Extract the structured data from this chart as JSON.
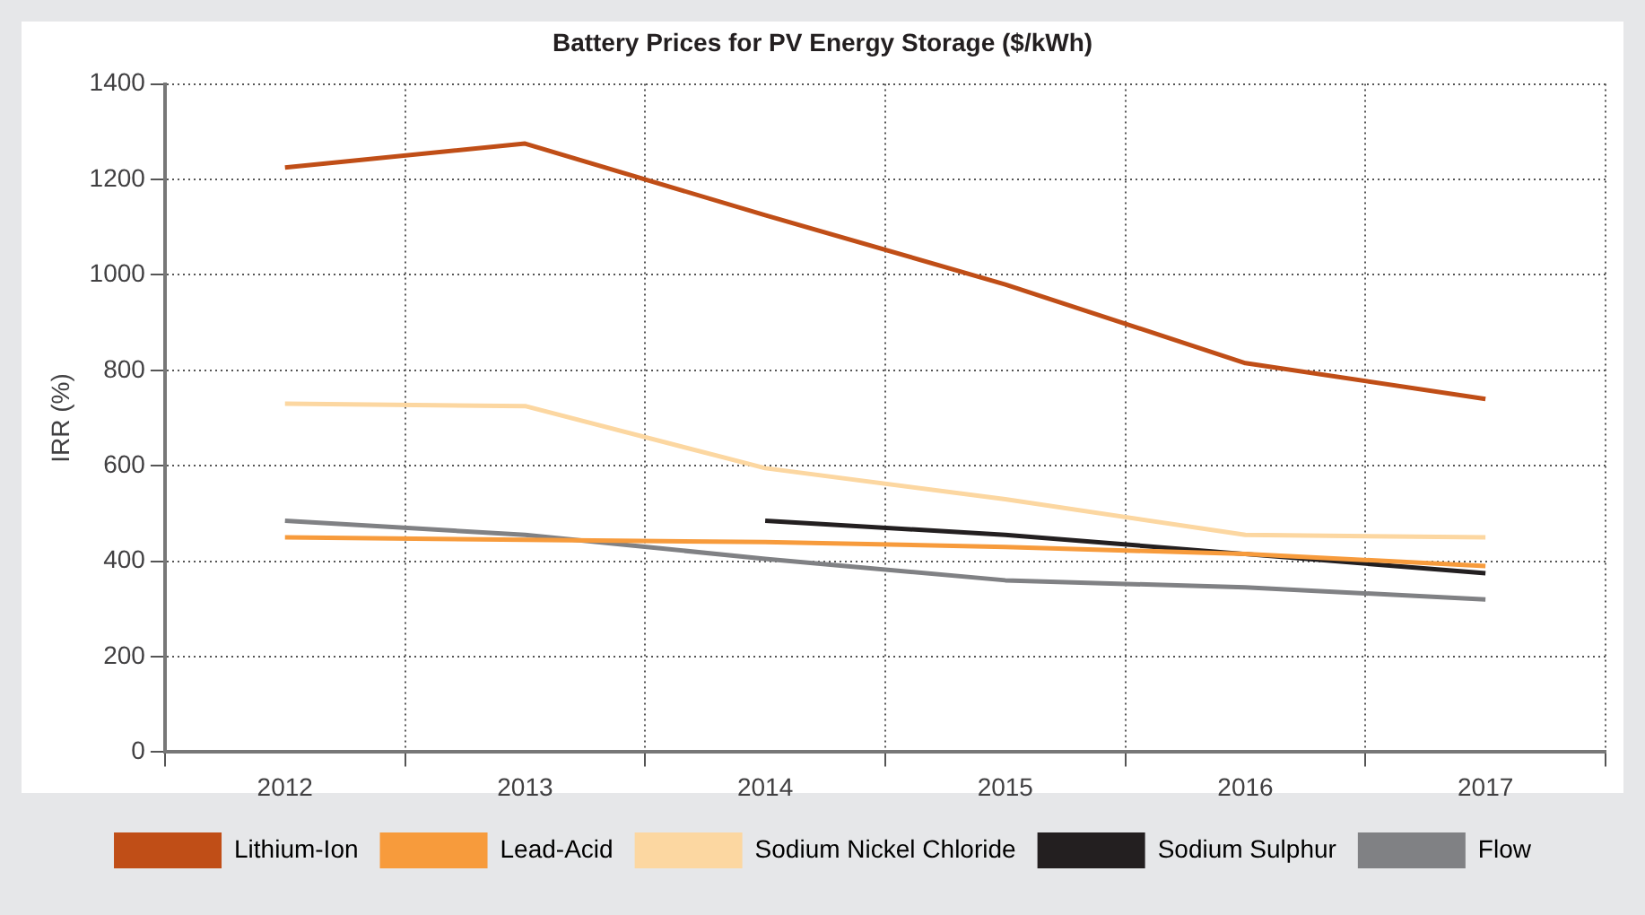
{
  "chart_data": {
    "type": "line",
    "title": "Battery Prices for PV Energy Storage ($/kWh)",
    "ylabel": "IRR (%)",
    "categories": [
      "2012",
      "2013",
      "2014",
      "2015",
      "2016",
      "2017"
    ],
    "series": [
      {
        "name": "Lithium-Ion",
        "color": "#c04e17",
        "values": [
          1225,
          1275,
          1125,
          980,
          815,
          740
        ]
      },
      {
        "name": "Lead-Acid",
        "color": "#f79b3c",
        "values": [
          450,
          445,
          440,
          430,
          415,
          390
        ]
      },
      {
        "name": "Sodium Nickel Chloride",
        "color": "#fcd7a1",
        "values": [
          730,
          725,
          595,
          530,
          455,
          450
        ]
      },
      {
        "name": "Sodium Sulphur",
        "color": "#231f20",
        "values": [
          null,
          null,
          485,
          455,
          415,
          375
        ]
      },
      {
        "name": "Flow",
        "color": "#808184",
        "values": [
          485,
          455,
          405,
          360,
          345,
          320
        ]
      }
    ],
    "ylim": [
      0,
      1400
    ],
    "yticks": [
      0,
      200,
      400,
      600,
      800,
      1000,
      1200,
      1400
    ],
    "grid": true,
    "legend": "bottom",
    "marker": "none",
    "line_style": "solid"
  }
}
